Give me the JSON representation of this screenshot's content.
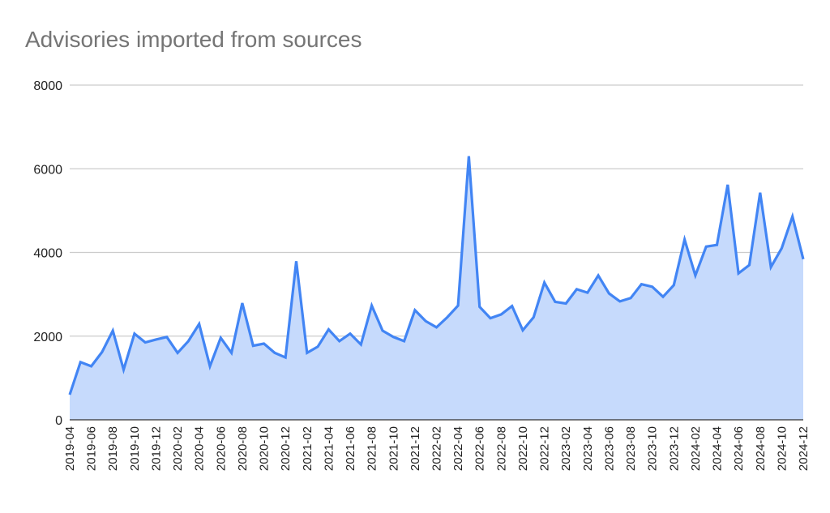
{
  "chart_data": {
    "type": "area",
    "title": "Advisories imported from sources",
    "xlabel": "",
    "ylabel": "",
    "ylim": [
      0,
      8000
    ],
    "yticks": [
      0,
      2000,
      4000,
      6000,
      8000
    ],
    "grid": true,
    "legend": "none",
    "colors": {
      "line": "#4285f4",
      "fill": "#c6dafc",
      "grid": "#cccccc",
      "axis": "#333333",
      "title": "#757575"
    },
    "x_tick_labels": [
      "2019-04",
      "2019-06",
      "2019-08",
      "2019-10",
      "2019-12",
      "2020-02",
      "2020-04",
      "2020-06",
      "2020-08",
      "2020-10",
      "2020-12",
      "2021-02",
      "2021-04",
      "2021-06",
      "2021-08",
      "2021-10",
      "2021-12",
      "2022-02",
      "2022-04",
      "2022-06",
      "2022-08",
      "2022-10",
      "2022-12",
      "2023-02",
      "2023-04",
      "2023-06",
      "2023-08",
      "2023-10",
      "2023-12",
      "2024-02",
      "2024-04",
      "2024-06",
      "2024-08",
      "2024-10",
      "2024-12"
    ],
    "categories": [
      "2019-04",
      "2019-05",
      "2019-06",
      "2019-07",
      "2019-08",
      "2019-09",
      "2019-10",
      "2019-11",
      "2019-12",
      "2020-01",
      "2020-02",
      "2020-03",
      "2020-04",
      "2020-05",
      "2020-06",
      "2020-07",
      "2020-08",
      "2020-09",
      "2020-10",
      "2020-11",
      "2020-12",
      "2021-01",
      "2021-02",
      "2021-03",
      "2021-04",
      "2021-05",
      "2021-06",
      "2021-07",
      "2021-08",
      "2021-09",
      "2021-10",
      "2021-11",
      "2021-12",
      "2022-01",
      "2022-02",
      "2022-03",
      "2022-04",
      "2022-05",
      "2022-06",
      "2022-07",
      "2022-08",
      "2022-09",
      "2022-10",
      "2022-11",
      "2022-12",
      "2023-01",
      "2023-02",
      "2023-03",
      "2023-04",
      "2023-05",
      "2023-06",
      "2023-07",
      "2023-08",
      "2023-09",
      "2023-10",
      "2023-11",
      "2023-12",
      "2024-01",
      "2024-02",
      "2024-03",
      "2024-04",
      "2024-05",
      "2024-06",
      "2024-07",
      "2024-08",
      "2024-09",
      "2024-10",
      "2024-11",
      "2024-12"
    ],
    "series": [
      {
        "name": "Advisories imported",
        "values": [
          600,
          1380,
          1280,
          1620,
          2130,
          1200,
          2060,
          1850,
          1920,
          1980,
          1600,
          1880,
          2290,
          1280,
          1960,
          1600,
          2790,
          1770,
          1820,
          1600,
          1490,
          3790,
          1600,
          1750,
          2160,
          1880,
          2060,
          1800,
          2730,
          2130,
          1980,
          1880,
          2620,
          2360,
          2210,
          2450,
          2730,
          6300,
          2700,
          2430,
          2520,
          2720,
          2140,
          2450,
          3280,
          2820,
          2780,
          3120,
          3040,
          3450,
          3020,
          2830,
          2910,
          3240,
          3180,
          2940,
          3220,
          4310,
          3450,
          4140,
          4180,
          5620,
          3500,
          3700,
          5430,
          3650,
          4100,
          4860,
          3840
        ]
      }
    ]
  }
}
